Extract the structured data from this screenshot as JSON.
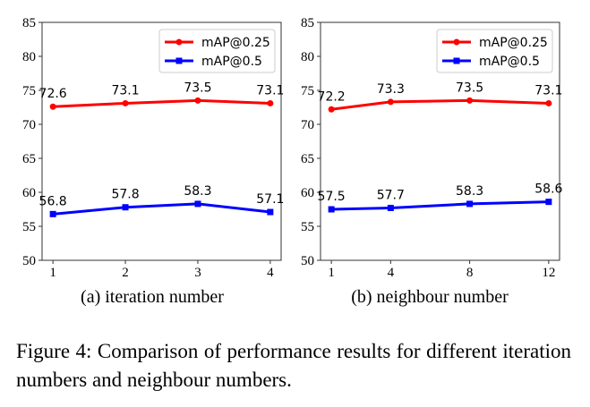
{
  "chart_data": [
    {
      "type": "line",
      "subcaption": "(a) iteration number",
      "x": [
        1,
        2,
        3,
        4
      ],
      "xticks": [
        "1",
        "2",
        "3",
        "4"
      ],
      "xlim": [
        0.85,
        4.15
      ],
      "ylim": [
        50,
        85
      ],
      "yticks": [
        "50",
        "55",
        "60",
        "65",
        "70",
        "75",
        "80",
        "85"
      ],
      "legend": "top-right",
      "grid": false,
      "series": [
        {
          "name": "mAP@0.25",
          "color": "#ff0000",
          "marker": "circle",
          "values": [
            72.6,
            73.1,
            73.5,
            73.1
          ],
          "labels": [
            "72.6",
            "73.1",
            "73.5",
            "73.1"
          ]
        },
        {
          "name": "mAP@0.5",
          "color": "#0000ff",
          "marker": "square",
          "values": [
            56.8,
            57.8,
            58.3,
            57.1
          ],
          "labels": [
            "56.8",
            "57.8",
            "58.3",
            "57.1"
          ]
        }
      ]
    },
    {
      "type": "line",
      "subcaption": "(b) neighbour number",
      "x": [
        1,
        4,
        8,
        12
      ],
      "xticks": [
        "1",
        "4",
        "8",
        "12"
      ],
      "xlim": [
        0.45,
        12.55
      ],
      "ylim": [
        50,
        85
      ],
      "yticks": [
        "50",
        "55",
        "60",
        "65",
        "70",
        "75",
        "80",
        "85"
      ],
      "legend": "top-right",
      "grid": false,
      "series": [
        {
          "name": "mAP@0.25",
          "color": "#ff0000",
          "marker": "circle",
          "values": [
            72.2,
            73.3,
            73.5,
            73.1
          ],
          "labels": [
            "72.2",
            "73.3",
            "73.5",
            "73.1"
          ]
        },
        {
          "name": "mAP@0.5",
          "color": "#0000ff",
          "marker": "square",
          "values": [
            57.5,
            57.7,
            58.3,
            58.6
          ],
          "labels": [
            "57.5",
            "57.7",
            "58.3",
            "58.6"
          ]
        }
      ]
    }
  ],
  "figure_caption": "Figure 4: Comparison of performance results for different iteration numbers and neighbour numbers."
}
